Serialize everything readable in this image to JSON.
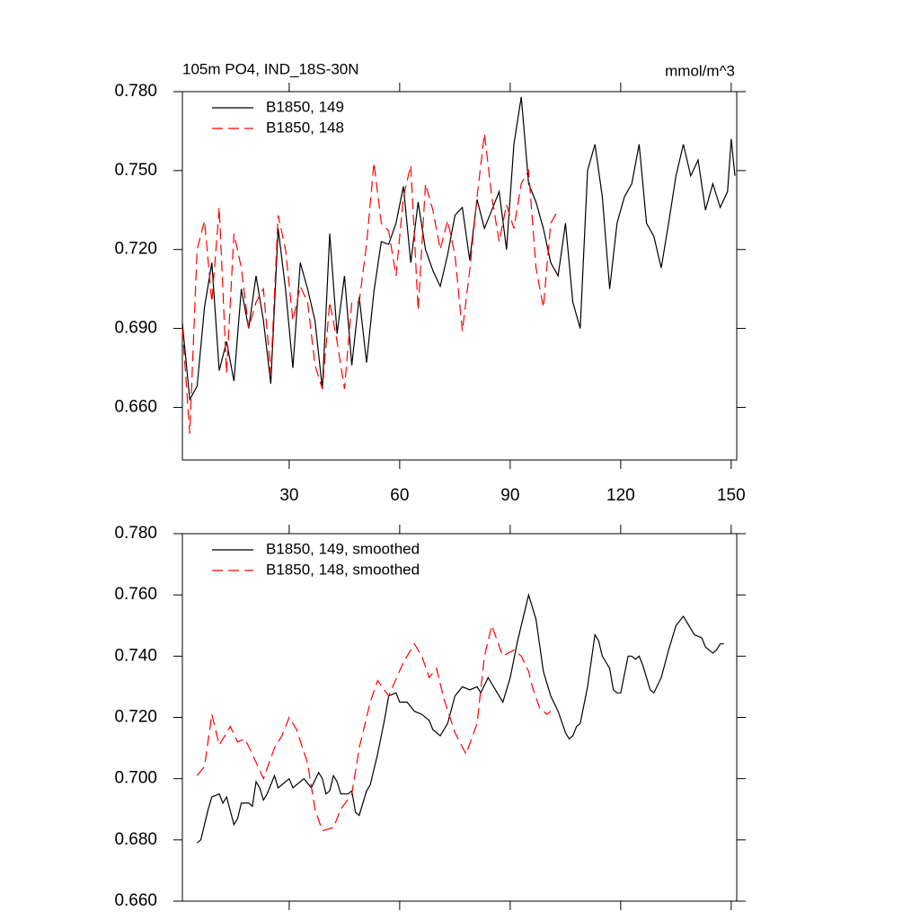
{
  "chart_data": [
    {
      "type": "line",
      "title": "105m PO4, IND_18S-30N",
      "units_label": "mmol/m^3",
      "xlim": [
        1,
        151.5
      ],
      "xticks": [
        30,
        60,
        90,
        120,
        150
      ],
      "show_xtick_labels": true,
      "ylim": [
        0.64,
        0.78
      ],
      "yticks": [
        {
          "value": 0.66,
          "label": "0.660"
        },
        {
          "value": 0.69,
          "label": "0.690"
        },
        {
          "value": 0.72,
          "label": "0.720"
        },
        {
          "value": 0.75,
          "label": "0.750"
        },
        {
          "value": 0.78,
          "label": "0.780"
        }
      ],
      "series": [
        {
          "name": "B1850, 149",
          "color": "#000000",
          "dash": "solid",
          "x": [
            1,
            3,
            5,
            7,
            9,
            11,
            13,
            15,
            17,
            19,
            21,
            23,
            25,
            27,
            29,
            31,
            33,
            35,
            37,
            39,
            41,
            43,
            45,
            47,
            49,
            51,
            53,
            55,
            57,
            59,
            61,
            63,
            65,
            67,
            69,
            71,
            73,
            75,
            77,
            79,
            81,
            83,
            85,
            87,
            89,
            91,
            93,
            95,
            97,
            99,
            101,
            103,
            105,
            107,
            109,
            111,
            113,
            115,
            117,
            119,
            121,
            123,
            125,
            127,
            129,
            131,
            133,
            135,
            137,
            139,
            141,
            143,
            145,
            147,
            149,
            150,
            151
          ],
          "values": [
            0.692,
            0.663,
            0.668,
            0.698,
            0.715,
            0.674,
            0.685,
            0.67,
            0.705,
            0.69,
            0.71,
            0.693,
            0.669,
            0.728,
            0.705,
            0.675,
            0.715,
            0.705,
            0.693,
            0.667,
            0.726,
            0.688,
            0.71,
            0.676,
            0.702,
            0.677,
            0.704,
            0.723,
            0.722,
            0.73,
            0.744,
            0.715,
            0.738,
            0.72,
            0.712,
            0.706,
            0.718,
            0.733,
            0.736,
            0.716,
            0.739,
            0.728,
            0.735,
            0.742,
            0.72,
            0.76,
            0.778,
            0.745,
            0.738,
            0.728,
            0.715,
            0.71,
            0.73,
            0.7,
            0.69,
            0.75,
            0.76,
            0.74,
            0.705,
            0.73,
            0.74,
            0.745,
            0.76,
            0.73,
            0.725,
            0.713,
            0.73,
            0.748,
            0.76,
            0.748,
            0.754,
            0.735,
            0.745,
            0.736,
            0.742,
            0.762,
            0.748
          ]
        },
        {
          "name": "B1850, 148",
          "color": "#ff0000",
          "dash": "dashed",
          "x": [
            1,
            3,
            5,
            7,
            9,
            11,
            13,
            15,
            17,
            19,
            21,
            23,
            25,
            27,
            29,
            31,
            33,
            35,
            37,
            39,
            41,
            43,
            45,
            47,
            49,
            51,
            53,
            55,
            57,
            59,
            61,
            63,
            65,
            67,
            69,
            71,
            73,
            75,
            77,
            79,
            81,
            83,
            85,
            87,
            89,
            91,
            93,
            95,
            97,
            99,
            101,
            103
          ],
          "values": [
            0.69,
            0.65,
            0.72,
            0.731,
            0.7,
            0.736,
            0.673,
            0.726,
            0.713,
            0.69,
            0.7,
            0.705,
            0.673,
            0.733,
            0.72,
            0.693,
            0.706,
            0.7,
            0.676,
            0.667,
            0.7,
            0.685,
            0.667,
            0.7,
            0.7,
            0.722,
            0.753,
            0.73,
            0.727,
            0.71,
            0.74,
            0.752,
            0.697,
            0.745,
            0.735,
            0.72,
            0.731,
            0.718,
            0.689,
            0.712,
            0.74,
            0.764,
            0.74,
            0.723,
            0.737,
            0.728,
            0.745,
            0.75,
            0.713,
            0.698,
            0.73,
            0.735
          ]
        }
      ]
    },
    {
      "type": "line",
      "xlim": [
        1,
        151.5
      ],
      "xticks": [
        30,
        60,
        90,
        120,
        150
      ],
      "show_xtick_labels": false,
      "ylim": [
        0.66,
        0.78
      ],
      "yticks": [
        {
          "value": 0.66,
          "label": "0.660"
        },
        {
          "value": 0.68,
          "label": "0.680"
        },
        {
          "value": 0.7,
          "label": "0.700"
        },
        {
          "value": 0.72,
          "label": "0.720"
        },
        {
          "value": 0.74,
          "label": "0.740"
        },
        {
          "value": 0.76,
          "label": "0.760"
        },
        {
          "value": 0.78,
          "label": "0.780"
        }
      ],
      "series": [
        {
          "name": "B1850, 149, smoothed",
          "color": "#000000",
          "dash": "solid",
          "x": [
            5,
            6,
            8,
            9,
            11,
            12,
            13,
            15,
            16,
            17,
            19,
            20,
            21,
            22,
            23,
            24,
            26,
            27,
            28,
            30,
            31,
            32,
            33,
            34,
            36,
            38,
            39,
            40,
            41,
            42,
            43,
            44,
            46,
            47,
            48,
            49,
            51,
            52,
            54,
            56,
            57,
            59,
            60,
            62,
            64,
            66,
            68,
            69,
            71,
            73,
            75,
            77,
            79,
            81,
            82,
            84,
            86,
            88,
            90,
            92,
            94,
            95,
            97,
            99,
            101,
            103,
            105,
            106,
            107,
            108,
            109,
            111,
            113,
            114,
            115,
            117,
            118,
            119,
            120,
            122,
            123,
            124,
            125,
            126,
            128,
            129,
            131,
            133,
            135,
            137,
            139,
            140,
            142,
            143,
            145,
            146,
            147,
            148
          ],
          "values": [
            0.679,
            0.68,
            0.69,
            0.694,
            0.695,
            0.692,
            0.694,
            0.685,
            0.687,
            0.692,
            0.692,
            0.691,
            0.699,
            0.697,
            0.693,
            0.695,
            0.701,
            0.697,
            0.698,
            0.7,
            0.697,
            0.698,
            0.699,
            0.7,
            0.697,
            0.702,
            0.7,
            0.695,
            0.696,
            0.701,
            0.699,
            0.695,
            0.695,
            0.696,
            0.689,
            0.688,
            0.696,
            0.698,
            0.708,
            0.72,
            0.727,
            0.728,
            0.725,
            0.725,
            0.722,
            0.721,
            0.719,
            0.716,
            0.714,
            0.718,
            0.727,
            0.73,
            0.729,
            0.73,
            0.728,
            0.733,
            0.729,
            0.725,
            0.733,
            0.745,
            0.755,
            0.76,
            0.752,
            0.735,
            0.727,
            0.722,
            0.715,
            0.713,
            0.714,
            0.717,
            0.718,
            0.73,
            0.747,
            0.745,
            0.74,
            0.736,
            0.729,
            0.728,
            0.728,
            0.74,
            0.74,
            0.739,
            0.74,
            0.737,
            0.729,
            0.728,
            0.733,
            0.742,
            0.75,
            0.753,
            0.749,
            0.747,
            0.746,
            0.743,
            0.741,
            0.742,
            0.744,
            0.744
          ]
        },
        {
          "name": "B1850, 148, smoothed",
          "color": "#ff0000",
          "dash": "dashed",
          "x": [
            5,
            7,
            9,
            11,
            14,
            16,
            18,
            20,
            23,
            26,
            28,
            30,
            32,
            35,
            37,
            39,
            42,
            44,
            47,
            49,
            52,
            54,
            57,
            61,
            64,
            66,
            68,
            70,
            72,
            75,
            78,
            81,
            83,
            85,
            88,
            91,
            93,
            95,
            96,
            98,
            100,
            101
          ],
          "values": [
            0.701,
            0.704,
            0.721,
            0.711,
            0.717,
            0.712,
            0.713,
            0.708,
            0.7,
            0.71,
            0.714,
            0.72,
            0.716,
            0.705,
            0.69,
            0.683,
            0.684,
            0.69,
            0.695,
            0.71,
            0.725,
            0.732,
            0.727,
            0.738,
            0.744,
            0.74,
            0.733,
            0.736,
            0.726,
            0.715,
            0.708,
            0.718,
            0.74,
            0.75,
            0.74,
            0.742,
            0.74,
            0.735,
            0.73,
            0.723,
            0.721,
            0.722
          ]
        }
      ]
    }
  ]
}
